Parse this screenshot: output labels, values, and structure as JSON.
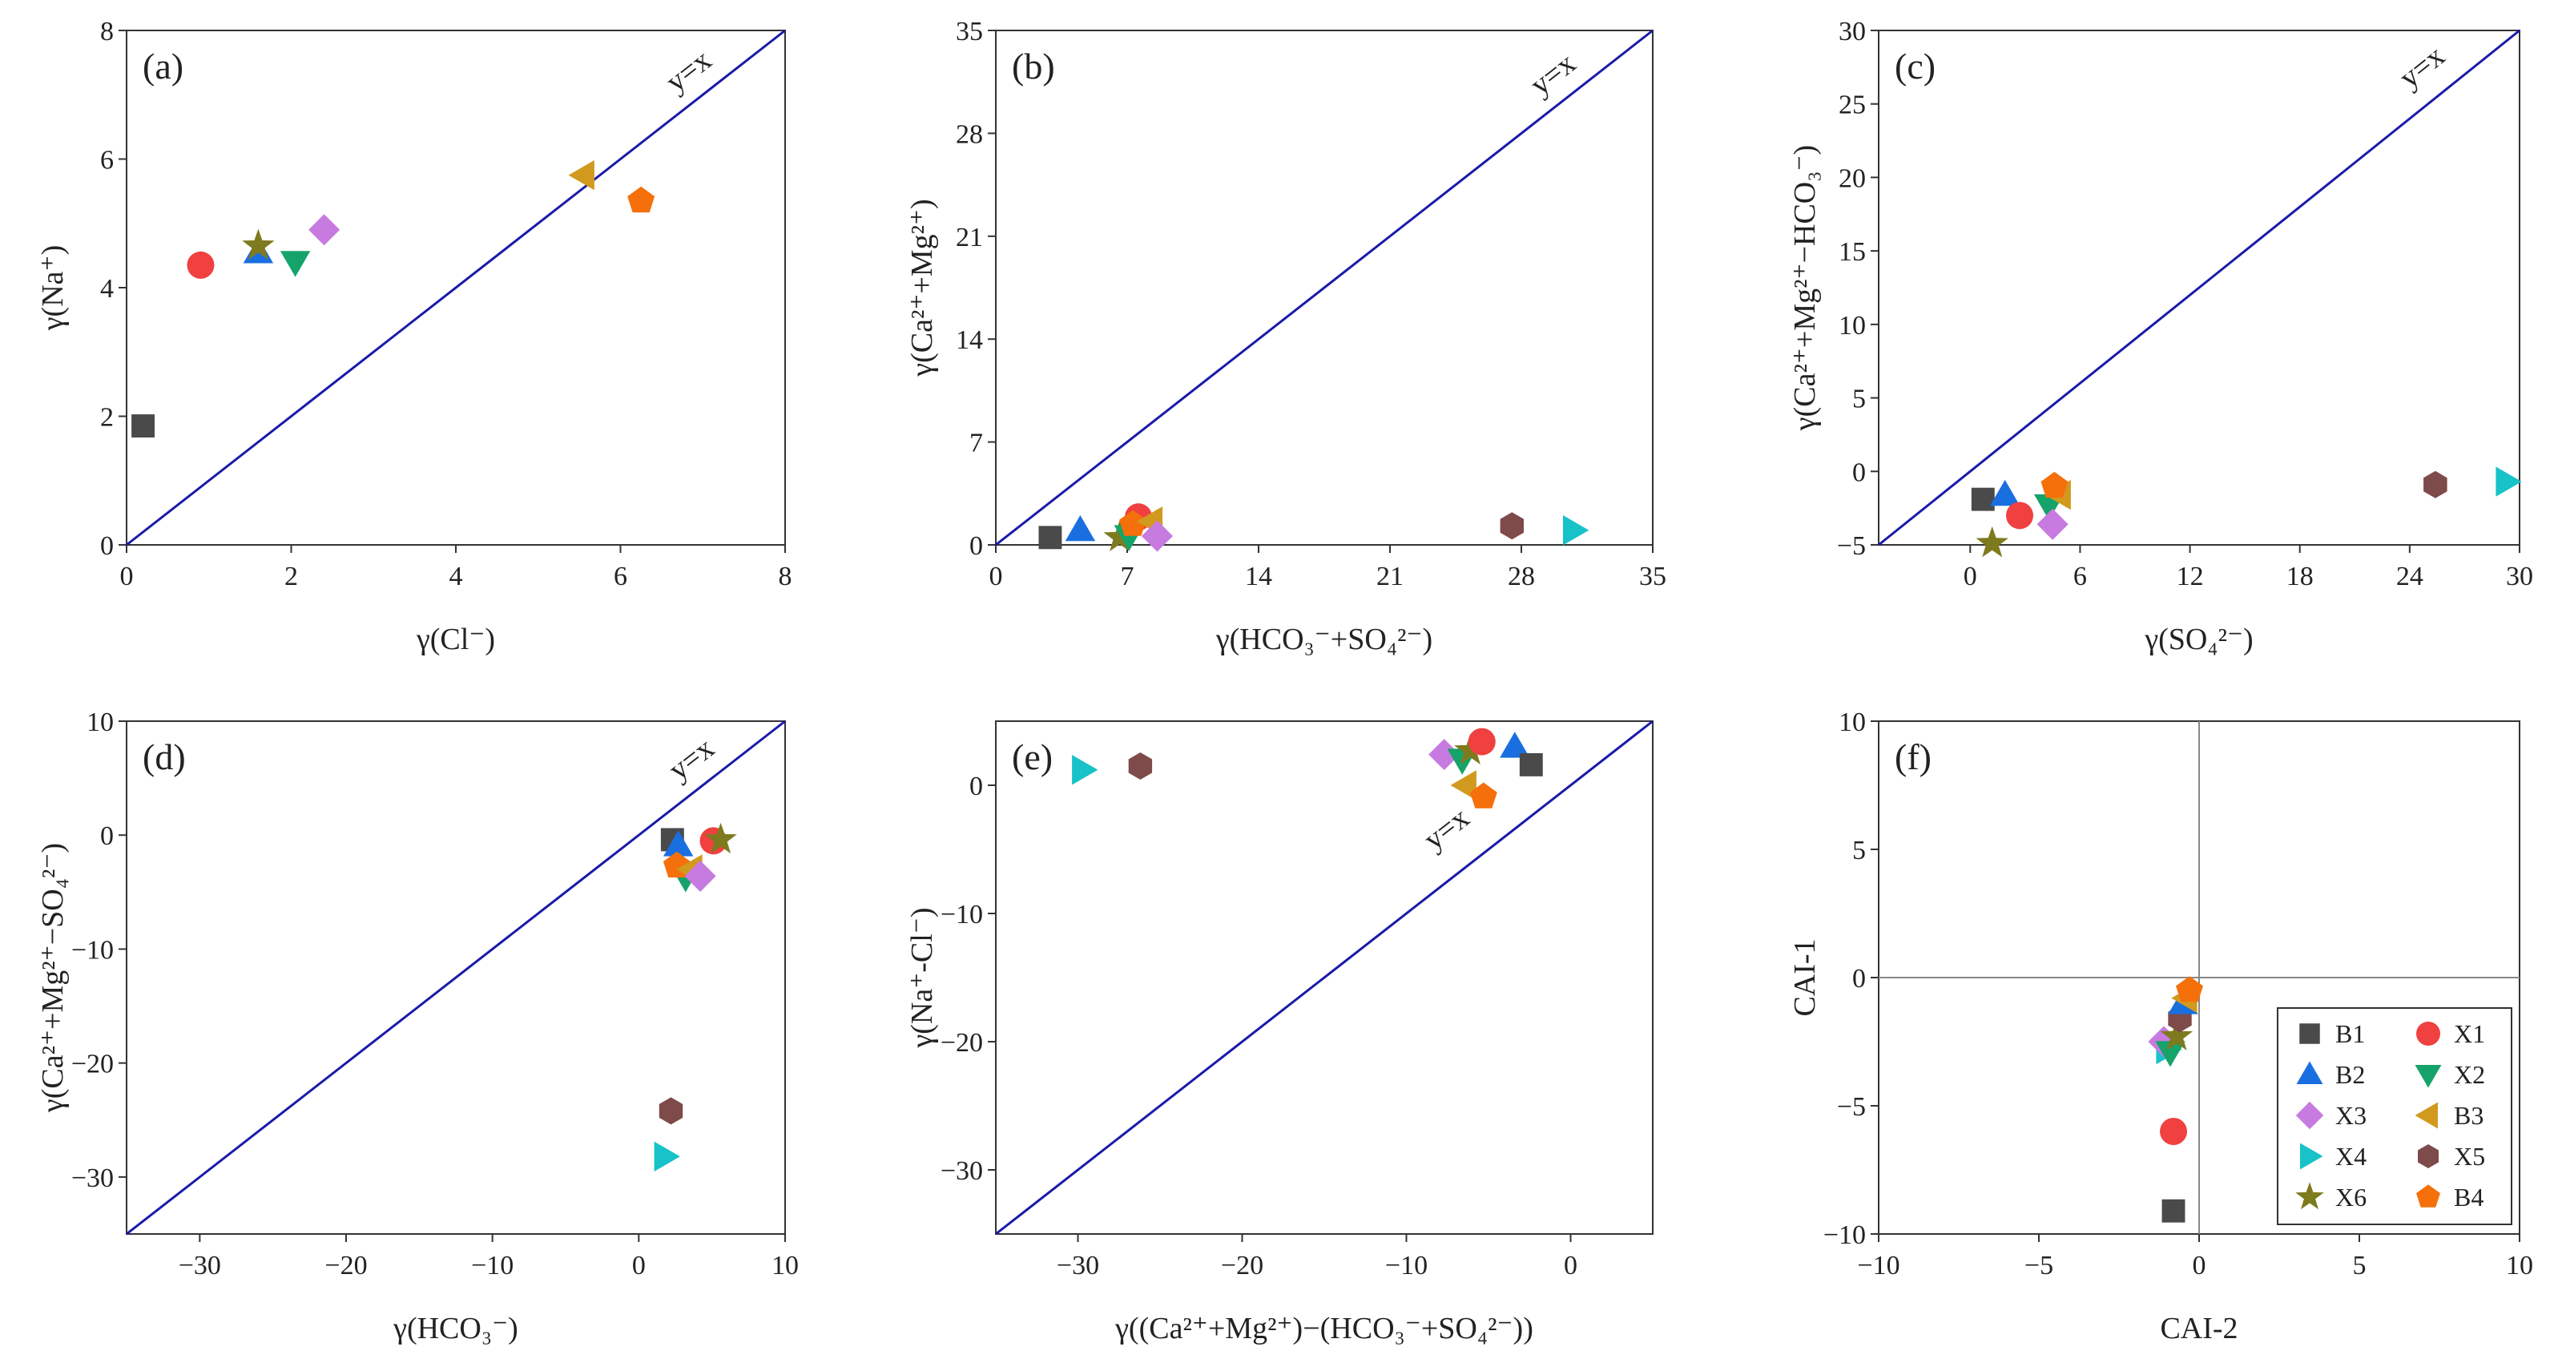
{
  "series_styles": {
    "B1": {
      "shape": "square",
      "color": "#4a4a4a"
    },
    "X1": {
      "shape": "circle",
      "color": "#f04040"
    },
    "B2": {
      "shape": "triangle-up",
      "color": "#1a6fe0"
    },
    "X2": {
      "shape": "triangle-down",
      "color": "#16a36a"
    },
    "X3": {
      "shape": "diamond",
      "color": "#c77be0"
    },
    "B3": {
      "shape": "triangle-left",
      "color": "#d19a1e"
    },
    "X4": {
      "shape": "triangle-right",
      "color": "#17c2c8"
    },
    "X5": {
      "shape": "hexagon",
      "color": "#7e4a4a"
    },
    "X6": {
      "shape": "star",
      "color": "#7e7a1e"
    },
    "B4": {
      "shape": "pentagon",
      "color": "#f5700a"
    }
  },
  "line_color": "#1a1aaa",
  "chart_data": [
    {
      "type": "scatter",
      "panel_label": "(a)",
      "xlabel": "γ(Cl⁻)",
      "ylabel": "γ(Na⁺)",
      "xlim": [
        0,
        8
      ],
      "ylim": [
        0,
        8
      ],
      "xticks": [
        0,
        2,
        4,
        6,
        8
      ],
      "yticks": [
        0,
        2,
        4,
        6,
        8
      ],
      "ref_line": {
        "label": "y=x",
        "label_at": [
          6.9,
          7.25
        ]
      },
      "points": [
        {
          "series": "B1",
          "x": 0.2,
          "y": 1.85
        },
        {
          "series": "X1",
          "x": 0.9,
          "y": 4.35
        },
        {
          "series": "B2",
          "x": 1.6,
          "y": 4.55
        },
        {
          "series": "X6",
          "x": 1.6,
          "y": 4.65
        },
        {
          "series": "X2",
          "x": 2.05,
          "y": 4.4
        },
        {
          "series": "X3",
          "x": 2.4,
          "y": 4.9
        },
        {
          "series": "B3",
          "x": 5.55,
          "y": 5.75
        },
        {
          "series": "B4",
          "x": 6.25,
          "y": 5.35
        }
      ]
    },
    {
      "type": "scatter",
      "panel_label": "(b)",
      "xlabel": "γ(HCO₃⁻+SO₄²⁻)",
      "ylabel": "γ(Ca²⁺+Mg²⁺)",
      "xlim": [
        0,
        35
      ],
      "ylim": [
        0,
        35
      ],
      "xticks": [
        0,
        7,
        14,
        21,
        28,
        35
      ],
      "yticks": [
        0,
        7,
        14,
        21,
        28,
        35
      ],
      "ref_line": {
        "label": "y=x",
        "label_at": [
          30.0,
          31.5
        ]
      },
      "points": [
        {
          "series": "B1",
          "x": 2.9,
          "y": 0.5
        },
        {
          "series": "B2",
          "x": 4.5,
          "y": 1.0
        },
        {
          "series": "X6",
          "x": 6.6,
          "y": 0.5
        },
        {
          "series": "X2",
          "x": 7.1,
          "y": 0.6
        },
        {
          "series": "X1",
          "x": 7.6,
          "y": 1.9
        },
        {
          "series": "B4",
          "x": 7.3,
          "y": 1.4
        },
        {
          "series": "B3",
          "x": 8.3,
          "y": 1.6
        },
        {
          "series": "X3",
          "x": 8.6,
          "y": 0.6
        },
        {
          "series": "X5",
          "x": 27.5,
          "y": 1.3
        },
        {
          "series": "X4",
          "x": 30.8,
          "y": 1.0
        }
      ]
    },
    {
      "type": "scatter",
      "panel_label": "(c)",
      "xlabel": "γ(SO₄²⁻)",
      "ylabel": "γ(Ca²⁺+Mg²⁺−HCO₃⁻)",
      "xlim": [
        -5,
        30
      ],
      "ylim": [
        -5,
        30
      ],
      "xticks": [
        0,
        6,
        12,
        18,
        24,
        30
      ],
      "yticks": [
        -5,
        0,
        5,
        10,
        15,
        20,
        25,
        30
      ],
      "ref_line": {
        "label": "y=x",
        "label_at": [
          25.0,
          27.0
        ]
      },
      "points": [
        {
          "series": "B1",
          "x": 0.7,
          "y": -1.9
        },
        {
          "series": "X6",
          "x": 1.2,
          "y": -4.9
        },
        {
          "series": "B2",
          "x": 1.9,
          "y": -1.6
        },
        {
          "series": "X1",
          "x": 2.7,
          "y": -3.0
        },
        {
          "series": "X2",
          "x": 4.3,
          "y": -2.3
        },
        {
          "series": "X3",
          "x": 4.5,
          "y": -3.6
        },
        {
          "series": "B3",
          "x": 4.9,
          "y": -1.6
        },
        {
          "series": "B4",
          "x": 4.6,
          "y": -1.0
        },
        {
          "series": "X5",
          "x": 25.4,
          "y": -0.9
        },
        {
          "series": "X4",
          "x": 29.3,
          "y": -0.7
        }
      ]
    },
    {
      "type": "scatter",
      "panel_label": "(d)",
      "xlabel": "γ(HCO₃⁻)",
      "ylabel": "γ(Ca²⁺+Mg²⁺−SO₄²⁻)",
      "xlim": [
        -35,
        10
      ],
      "ylim": [
        -35,
        10
      ],
      "xticks": [
        -30,
        -20,
        -10,
        0,
        10
      ],
      "yticks": [
        -30,
        -20,
        -10,
        0,
        10
      ],
      "ref_line": {
        "label": "y=x",
        "label_at": [
          4.0,
          6.0
        ]
      },
      "points": [
        {
          "series": "B1",
          "x": 2.3,
          "y": -0.4
        },
        {
          "series": "B2",
          "x": 2.7,
          "y": -0.9
        },
        {
          "series": "X1",
          "x": 5.1,
          "y": -0.5
        },
        {
          "series": "X6",
          "x": 5.6,
          "y": -0.4
        },
        {
          "series": "X2",
          "x": 3.2,
          "y": -3.7
        },
        {
          "series": "B4",
          "x": 2.6,
          "y": -2.7
        },
        {
          "series": "B3",
          "x": 3.6,
          "y": -3.0
        },
        {
          "series": "X3",
          "x": 4.2,
          "y": -3.6
        },
        {
          "series": "X5",
          "x": 2.2,
          "y": -24.2
        },
        {
          "series": "X4",
          "x": 1.8,
          "y": -28.2
        }
      ]
    },
    {
      "type": "scatter",
      "panel_label": "(e)",
      "xlabel": "γ((Ca²⁺+Mg²⁺)−(HCO₃⁻+SO₄²⁻))",
      "ylabel": "γ(Na⁺-Cl⁻)",
      "xlim": [
        -35,
        5
      ],
      "ylim": [
        -35,
        5
      ],
      "xticks": [
        -30,
        -20,
        -10,
        0
      ],
      "yticks": [
        -30,
        -20,
        -10,
        0
      ],
      "ref_line": {
        "label": "y=x",
        "label_at": [
          -7.2,
          -4.0
        ]
      },
      "points": [
        {
          "series": "X4",
          "x": -29.7,
          "y": 1.2
        },
        {
          "series": "X5",
          "x": -26.2,
          "y": 1.5
        },
        {
          "series": "X3",
          "x": -7.7,
          "y": 2.4
        },
        {
          "series": "X2",
          "x": -6.6,
          "y": 2.0
        },
        {
          "series": "X6",
          "x": -6.1,
          "y": 2.7
        },
        {
          "series": "B3",
          "x": -6.4,
          "y": 0.0
        },
        {
          "series": "X1",
          "x": -5.4,
          "y": 3.4
        },
        {
          "series": "B4",
          "x": -5.3,
          "y": -0.9
        },
        {
          "series": "B2",
          "x": -3.4,
          "y": 3.0
        },
        {
          "series": "B1",
          "x": -2.4,
          "y": 1.6
        }
      ]
    },
    {
      "type": "scatter",
      "panel_label": "(f)",
      "xlabel": "CAI-2",
      "ylabel": "CAI-1",
      "xlim": [
        -10,
        10
      ],
      "ylim": [
        -10,
        10
      ],
      "xticks": [
        -10,
        -5,
        0,
        5,
        10
      ],
      "yticks": [
        -10,
        -5,
        0,
        5,
        10
      ],
      "zero_lines": true,
      "legend_position": "bottom-right",
      "legend": [
        "B1",
        "X1",
        "B2",
        "X2",
        "X3",
        "B3",
        "X4",
        "X5",
        "X6",
        "B4"
      ],
      "points": [
        {
          "series": "B1",
          "x": -0.8,
          "y": -9.1
        },
        {
          "series": "X1",
          "x": -0.8,
          "y": -6.0
        },
        {
          "series": "X4",
          "x": -1.0,
          "y": -2.8
        },
        {
          "series": "X3",
          "x": -1.1,
          "y": -2.5
        },
        {
          "series": "X2",
          "x": -0.9,
          "y": -2.9
        },
        {
          "series": "X6",
          "x": -0.7,
          "y": -2.3
        },
        {
          "series": "X5",
          "x": -0.6,
          "y": -1.6
        },
        {
          "series": "B2",
          "x": -0.5,
          "y": -1.0
        },
        {
          "series": "B3",
          "x": -0.4,
          "y": -0.8
        },
        {
          "series": "B4",
          "x": -0.3,
          "y": -0.5
        }
      ]
    }
  ]
}
